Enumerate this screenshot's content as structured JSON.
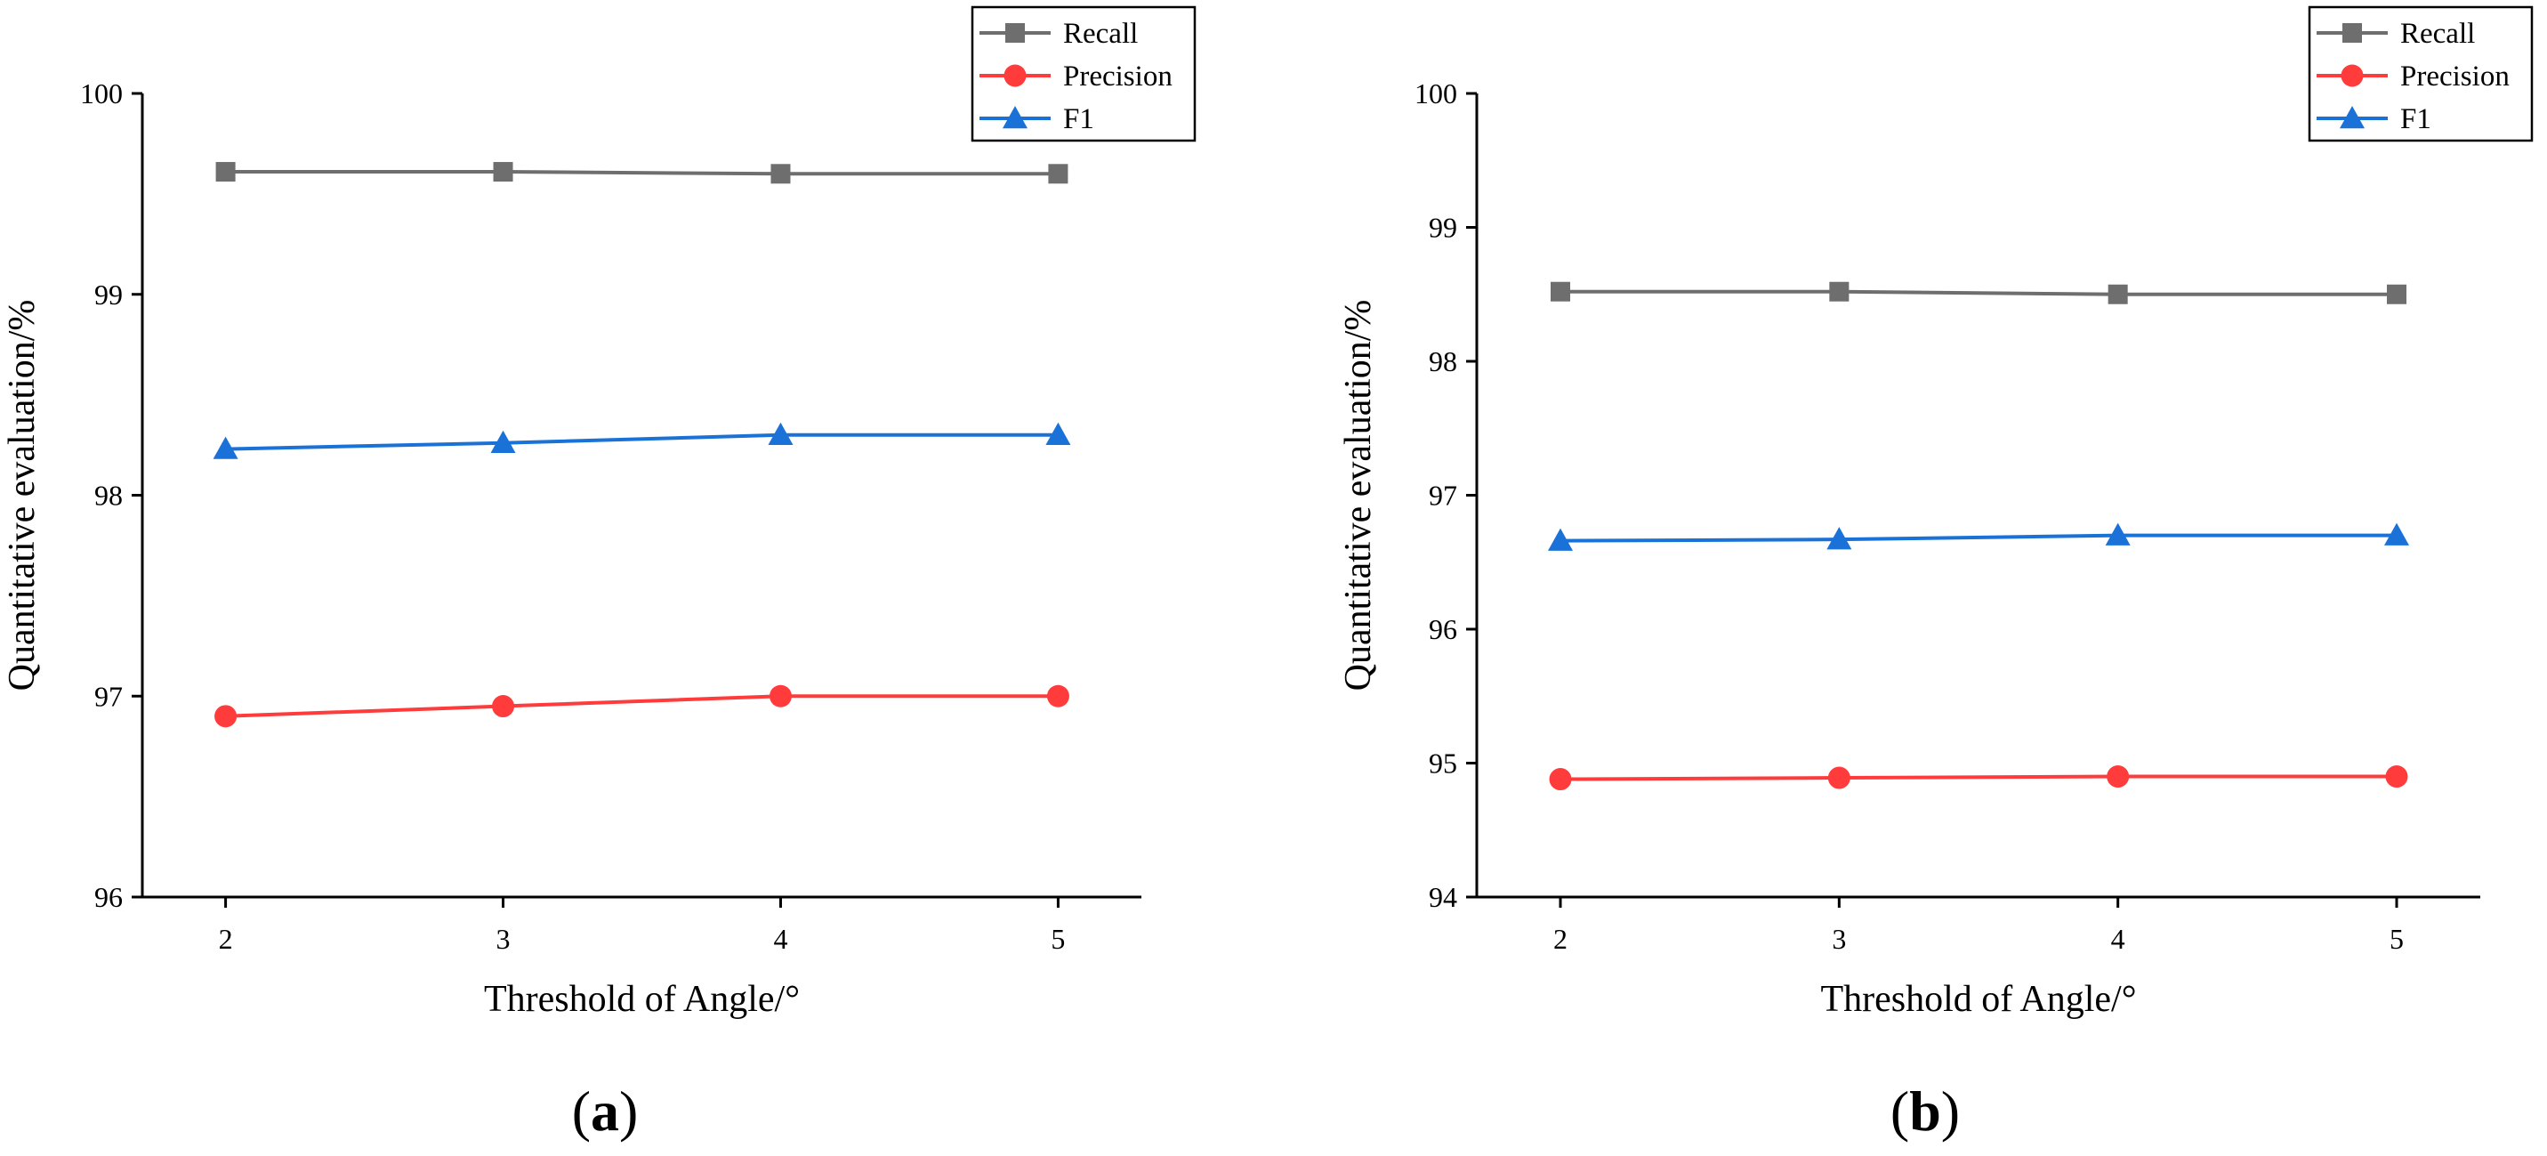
{
  "colors": {
    "Recall": "#6e6e6e",
    "Precision": "#ff3b3b",
    "F1": "#1a72d8",
    "axis": "#000000"
  },
  "chart_data": [
    {
      "type": "line",
      "panel_label": "a",
      "xlabel": "Threshold of Angle/°",
      "ylabel": "Quantitative evaluation/%",
      "x": [
        2,
        3,
        4,
        5
      ],
      "xlim": [
        1.7,
        5.3
      ],
      "ylim": [
        96,
        100
      ],
      "yticks": [
        96,
        97,
        98,
        99,
        100
      ],
      "grid": false,
      "legend": "top-right",
      "series": [
        {
          "name": "Recall",
          "marker": "square",
          "values": [
            99.61,
            99.61,
            99.6,
            99.6
          ]
        },
        {
          "name": "Precision",
          "marker": "circle",
          "values": [
            96.9,
            96.95,
            97.0,
            97.0
          ]
        },
        {
          "name": "F1",
          "marker": "triangle",
          "values": [
            98.23,
            98.26,
            98.3,
            98.3
          ]
        }
      ]
    },
    {
      "type": "line",
      "panel_label": "b",
      "xlabel": "Threshold of Angle/°",
      "ylabel": "Quantitative evaluation/%",
      "x": [
        2,
        3,
        4,
        5
      ],
      "xlim": [
        1.7,
        5.3
      ],
      "ylim": [
        94,
        100
      ],
      "yticks": [
        94,
        95,
        96,
        97,
        98,
        99,
        100
      ],
      "grid": false,
      "legend": "top-right",
      "series": [
        {
          "name": "Recall",
          "marker": "square",
          "values": [
            98.52,
            98.52,
            98.5,
            98.5
          ]
        },
        {
          "name": "Precision",
          "marker": "circle",
          "values": [
            94.88,
            94.89,
            94.9,
            94.9
          ]
        },
        {
          "name": "F1",
          "marker": "triangle",
          "values": [
            96.66,
            96.67,
            96.7,
            96.7
          ]
        }
      ]
    }
  ]
}
